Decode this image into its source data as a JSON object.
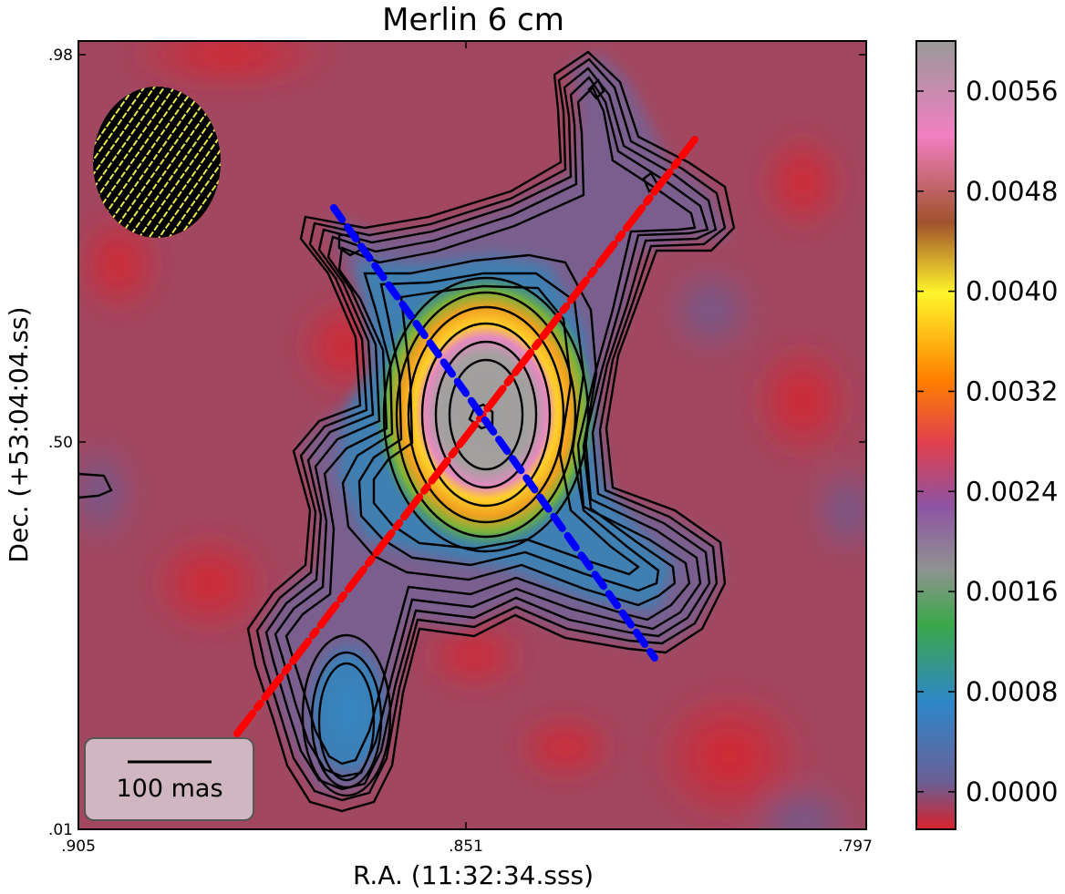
{
  "chart_data": {
    "type": "heatmap",
    "title": "Merlin 6 cm",
    "xlabel": "R.A. (11:32:34.sss)",
    "ylabel": "Dec. (+53:04:04.ss)",
    "x_ticks": [
      ".905",
      ".851",
      ".797"
    ],
    "y_ticks": [
      ".98",
      ".50",
      ".01"
    ],
    "xlim": [
      0.905,
      0.797
    ],
    "ylim": [
      0.01,
      0.98
    ],
    "colorbar": {
      "ticks": [
        "0.0056",
        "0.0048",
        "0.0040",
        "0.0032",
        "0.0024",
        "0.0016",
        "0.0008",
        "0.0000"
      ],
      "tick_values": [
        0.0056,
        0.0048,
        0.004,
        0.0032,
        0.0024,
        0.0016,
        0.0008,
        0.0
      ],
      "range": [
        -0.0003,
        0.006
      ],
      "colors": [
        "#d7222b",
        "#6a5f95",
        "#2f86c9",
        "#3aa84a",
        "#8f9390",
        "#8e53a3",
        "#e0404e",
        "#ff7f00",
        "#fff52b",
        "#a0522d",
        "#f27fc2",
        "#999999"
      ]
    },
    "scalebar_label": "100 mas",
    "overlays": {
      "red_axis": {
        "color": "#ff0000",
        "style": "dash-dot"
      },
      "blue_axis": {
        "color": "#0000ff",
        "style": "dashed"
      }
    },
    "beam": {
      "fill": "#000000",
      "hatch": "#ffff55"
    }
  }
}
